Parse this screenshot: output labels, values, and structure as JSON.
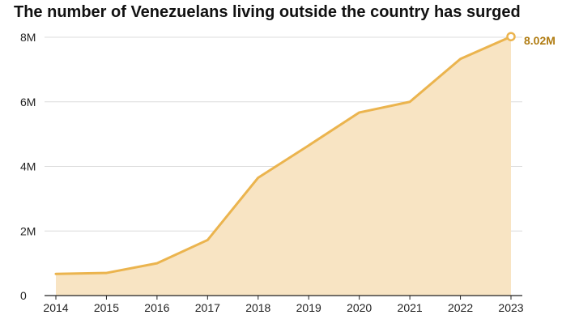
{
  "chart_data": {
    "type": "area",
    "title": "The number of Venezuelans living outside the country has surged",
    "xlabel": "",
    "ylabel": "",
    "x": [
      "2014",
      "2015",
      "2016",
      "2017",
      "2018",
      "2019",
      "2020",
      "2021",
      "2022",
      "2023"
    ],
    "values": [
      0.67,
      0.7,
      1.0,
      1.72,
      3.65,
      4.65,
      5.67,
      6.0,
      7.33,
      8.02
    ],
    "ylim": [
      0,
      8
    ],
    "y_ticks": [
      0,
      2,
      4,
      6,
      8
    ],
    "y_tick_labels": [
      "0",
      "2M",
      "4M",
      "6M",
      "8M"
    ],
    "end_label": "8.02M",
    "grid": "horizontal",
    "colors": {
      "line": "#ebb44e",
      "fill": "#f8e4c3",
      "end_label": "#b07c12",
      "grid": "#dcdcdc",
      "axis": "#222222"
    }
  }
}
